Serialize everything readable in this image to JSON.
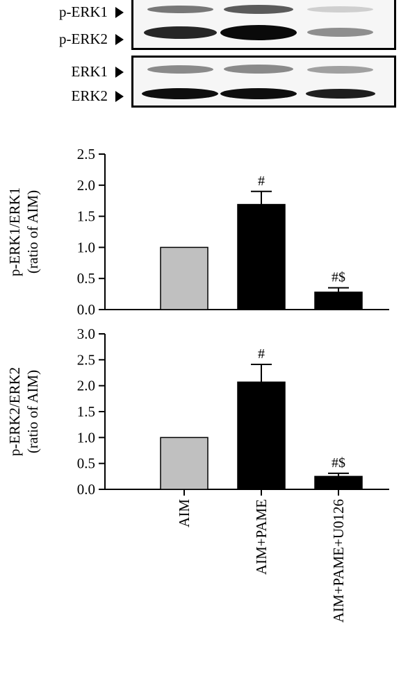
{
  "blot": {
    "top_panel_labels": [
      "p-ERK1",
      "p-ERK2"
    ],
    "bottom_panel_labels": [
      "ERK1",
      "ERK2"
    ]
  },
  "chart_data": [
    {
      "type": "bar",
      "categories": [
        "AIM",
        "AIM+PAME",
        "AIM+PAME+U0126"
      ],
      "values": [
        1.0,
        1.69,
        0.28
      ],
      "errors": [
        0,
        0.21,
        0.07
      ],
      "annotations": [
        "",
        "#",
        "#$"
      ],
      "colors": [
        "#c0c0c0",
        "#000000",
        "#000000"
      ],
      "ylabel_line1": "p-ERK1/ERK1",
      "ylabel_line2": "(ratio of AIM)",
      "ylim": [
        0,
        2.5
      ],
      "yticks": [
        "0.0",
        "0.5",
        "1.0",
        "1.5",
        "2.0",
        "2.5"
      ],
      "grid": false
    },
    {
      "type": "bar",
      "categories": [
        "AIM",
        "AIM+PAME",
        "AIM+PAME+U0126"
      ],
      "values": [
        1.0,
        2.07,
        0.25
      ],
      "errors": [
        0,
        0.34,
        0.06
      ],
      "annotations": [
        "",
        "#",
        "#$"
      ],
      "colors": [
        "#c0c0c0",
        "#000000",
        "#000000"
      ],
      "ylabel_line1": "p-ERK2/ERK2",
      "ylabel_line2": "(ratio of AIM)",
      "ylim": [
        0,
        3.0
      ],
      "yticks": [
        "0.0",
        "0.5",
        "1.0",
        "1.5",
        "2.0",
        "2.5",
        "3.0"
      ],
      "grid": false
    }
  ]
}
